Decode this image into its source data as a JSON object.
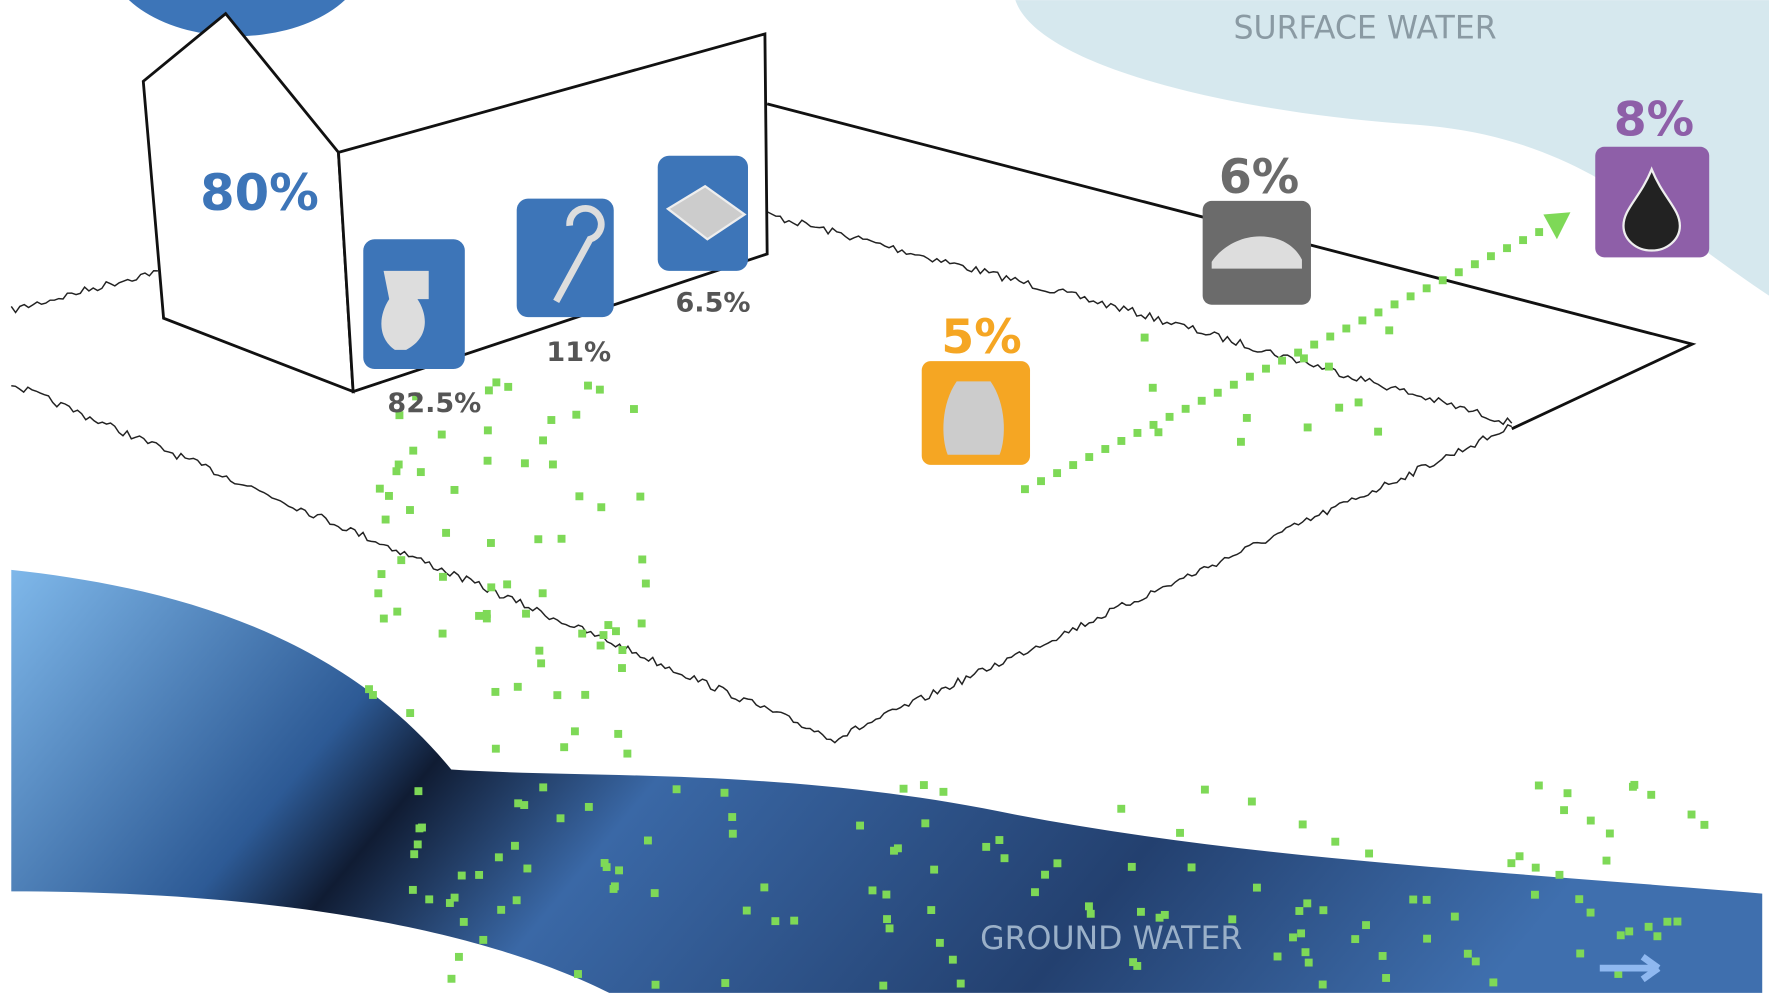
{
  "surface_water": "SURFACE WATER",
  "ground_water": "GROUND WATER",
  "house": {
    "share": "80%",
    "toilet": "82.5%",
    "shower": "11%",
    "sink": "6.5%"
  },
  "sources": {
    "fertilizer": "5%",
    "car": "6%",
    "oil": "8%"
  }
}
